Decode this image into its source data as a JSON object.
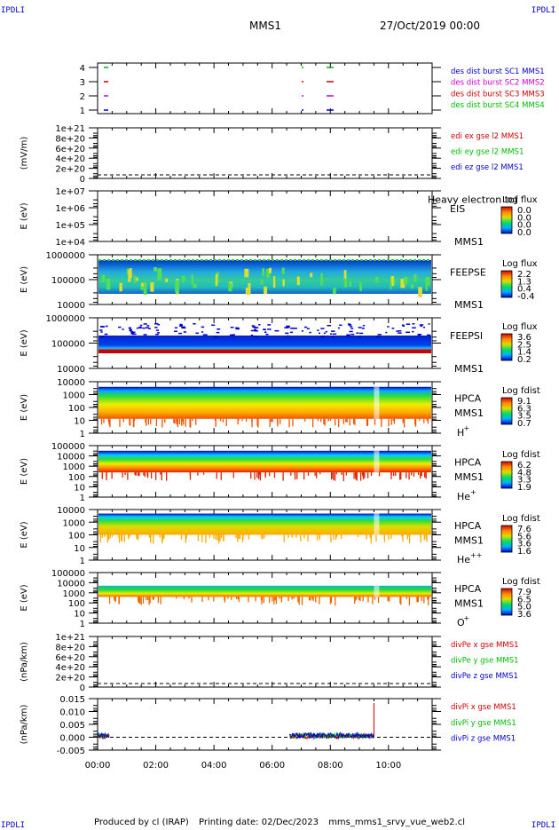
{
  "corner_label": "IPDLI",
  "header": {
    "spacecraft": "MMS1",
    "date": "27/Oct/2019 00:00"
  },
  "footer": {
    "produced_by": "Produced by cl (IRAP)",
    "printing_date": "Printing date: 02/Dec/2023",
    "filename": "mms_mms1_srvy_vue_web2.cl"
  },
  "colors": {
    "mms1": "#0000cc",
    "mms2": "#cc00cc",
    "mms3": "#cc0000",
    "mms4": "#00bb00",
    "x": "#cc0000",
    "y": "#00bb00",
    "z": "#0000cc"
  },
  "x_axis": {
    "ticks": [
      "00:00",
      "02:00",
      "04:00",
      "06:00",
      "08:00",
      "10:00"
    ]
  },
  "chart_data": [
    {
      "id": "burst",
      "type": "scatter",
      "y_ticks": [
        "4",
        "3",
        "2",
        "1"
      ],
      "legend": [
        {
          "parts": [
            "des dist burst SC1",
            "MMS1"
          ],
          "color": "#0000cc"
        },
        {
          "parts": [
            "des dist burst SC2",
            "MMS2"
          ],
          "color": "#cc00cc"
        },
        {
          "parts": [
            "des dist burst SC3",
            "MMS3"
          ],
          "color": "#cc0000"
        },
        {
          "parts": [
            "des dist burst SC4",
            "MMS4"
          ],
          "color": "#00bb00"
        }
      ]
    },
    {
      "id": "edi",
      "type": "line",
      "ylabel": "(mV/m)",
      "y_ticks": [
        "1e+21",
        "8e+20",
        "6e+20",
        "4e+20",
        "2e+20",
        "0"
      ],
      "legend": [
        {
          "parts": [
            "edi ex gse l2",
            "MMS1"
          ],
          "color": "#cc0000"
        },
        {
          "parts": [
            "edi ey gse l2",
            "MMS1"
          ],
          "color": "#00bb00"
        },
        {
          "parts": [
            "edi ez gse l2",
            "MMS1"
          ],
          "color": "#0000cc"
        }
      ]
    },
    {
      "id": "eis",
      "type": "heatmap",
      "ylabel": "E (eV)",
      "y_ticks": [
        "1e+07",
        "1e+06",
        "1e+05",
        "1e+04"
      ],
      "labels": [
        "EIS",
        "MMS1"
      ],
      "overlay": "Heavy electron tof",
      "cbar_title": "Log flux",
      "cbar_ticks": [
        "0.0",
        "0.0",
        "0.0",
        "0.0"
      ]
    },
    {
      "id": "feepse",
      "type": "heatmap",
      "ylabel": "E (eV)",
      "y_ticks": [
        "1000000",
        "100000",
        "10000"
      ],
      "labels": [
        "FEEPSE",
        "MMS1"
      ],
      "cbar_title": "Log flux",
      "cbar_ticks": [
        "2.2",
        "1.3",
        "0.4",
        "-0.4"
      ]
    },
    {
      "id": "feepsi",
      "type": "heatmap",
      "ylabel": "E (eV)",
      "y_ticks": [
        "1000000",
        "100000",
        "10000"
      ],
      "labels": [
        "FEEPSI",
        "MMS1"
      ],
      "cbar_title": "Log flux",
      "cbar_ticks": [
        "3.6",
        "2.5",
        "1.4",
        "0.2"
      ]
    },
    {
      "id": "hpca_h",
      "type": "heatmap",
      "ylabel": "E (eV)",
      "y_ticks": [
        "10000",
        "1000",
        "100",
        "10",
        "1"
      ],
      "labels": [
        "HPCA",
        "MMS1"
      ],
      "species": "H",
      "charge": "+",
      "cbar_title": "Log fdist",
      "cbar_ticks": [
        "9.1",
        "6.3",
        "3.5",
        "0.7"
      ]
    },
    {
      "id": "hpca_he",
      "type": "heatmap",
      "ylabel": "E (eV)",
      "y_ticks": [
        "100000",
        "10000",
        "1000",
        "100",
        "10",
        "1"
      ],
      "labels": [
        "HPCA",
        "MMS1"
      ],
      "species": "He",
      "charge": "+",
      "cbar_title": "Log fdist",
      "cbar_ticks": [
        "6.2",
        "4.8",
        "3.3",
        "1.9"
      ]
    },
    {
      "id": "hpca_hepp",
      "type": "heatmap",
      "ylabel": "E (eV)",
      "y_ticks": [
        "10000",
        "1000",
        "100",
        "10",
        "1"
      ],
      "labels": [
        "HPCA",
        "MMS1"
      ],
      "species": "He",
      "charge": "++",
      "cbar_title": "Log fdist",
      "cbar_ticks": [
        "7.6",
        "5.6",
        "3.6",
        "1.6"
      ]
    },
    {
      "id": "hpca_o",
      "type": "heatmap",
      "ylabel": "E (eV)",
      "y_ticks": [
        "100000",
        "10000",
        "1000",
        "100",
        "10",
        "1"
      ],
      "labels": [
        "HPCA",
        "MMS1"
      ],
      "species": "O",
      "charge": "+",
      "cbar_title": "Log fdist",
      "cbar_ticks": [
        "7.9",
        "6.5",
        "5.0",
        "3.6"
      ]
    },
    {
      "id": "divpe",
      "type": "line",
      "ylabel": "(nPa/km)",
      "y_ticks": [
        "1e+21",
        "8e+20",
        "6e+20",
        "4e+20",
        "2e+20",
        "0"
      ],
      "legend": [
        {
          "parts": [
            "divPe x gse",
            "MMS1"
          ],
          "color": "#cc0000"
        },
        {
          "parts": [
            "divPe y gse",
            "MMS1"
          ],
          "color": "#00bb00"
        },
        {
          "parts": [
            "divPe z gse",
            "MMS1"
          ],
          "color": "#0000cc"
        }
      ]
    },
    {
      "id": "divpi",
      "type": "line",
      "ylabel": "(nPa/km)",
      "y_ticks": [
        "0.015",
        "0.010",
        "0.005",
        "0.000",
        "-0.005"
      ],
      "legend": [
        {
          "parts": [
            "divPi x gse",
            "MMS1"
          ],
          "color": "#cc0000"
        },
        {
          "parts": [
            "divPi y gse",
            "MMS1"
          ],
          "color": "#00bb00"
        },
        {
          "parts": [
            "divPi z gse",
            "MMS1"
          ],
          "color": "#0000cc"
        }
      ]
    }
  ]
}
